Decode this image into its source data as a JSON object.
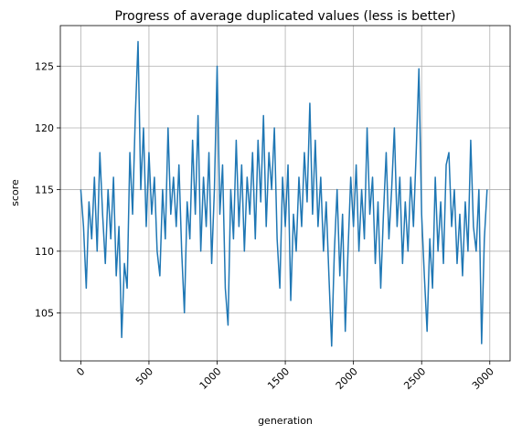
{
  "chart_data": {
    "type": "line",
    "title": "Progress of average duplicated values (less is better)",
    "xlabel": "generation",
    "ylabel": "score",
    "color": "#1f77b4",
    "grid": true,
    "xlim": [
      -150,
      3149
    ],
    "ylim": [
      101.1,
      128.3
    ],
    "xticks": [
      0,
      500,
      1000,
      1500,
      2000,
      2500,
      3000
    ],
    "yticks": [
      105,
      110,
      115,
      120,
      125
    ],
    "x": [
      0,
      20,
      40,
      60,
      80,
      100,
      120,
      140,
      160,
      180,
      200,
      220,
      240,
      260,
      280,
      300,
      320,
      340,
      360,
      380,
      400,
      420,
      440,
      460,
      480,
      500,
      520,
      540,
      560,
      580,
      600,
      620,
      640,
      660,
      680,
      700,
      720,
      740,
      760,
      780,
      800,
      820,
      840,
      860,
      880,
      900,
      920,
      940,
      960,
      980,
      1000,
      1020,
      1040,
      1060,
      1080,
      1100,
      1120,
      1140,
      1160,
      1180,
      1200,
      1220,
      1240,
      1260,
      1280,
      1300,
      1320,
      1340,
      1360,
      1380,
      1400,
      1420,
      1440,
      1460,
      1480,
      1500,
      1520,
      1540,
      1560,
      1580,
      1600,
      1620,
      1640,
      1660,
      1680,
      1700,
      1720,
      1740,
      1760,
      1780,
      1800,
      1820,
      1840,
      1860,
      1880,
      1900,
      1920,
      1940,
      1960,
      1980,
      2000,
      2020,
      2040,
      2060,
      2080,
      2100,
      2120,
      2140,
      2160,
      2180,
      2200,
      2220,
      2240,
      2260,
      2280,
      2300,
      2320,
      2340,
      2360,
      2380,
      2400,
      2420,
      2440,
      2460,
      2480,
      2500,
      2520,
      2540,
      2560,
      2580,
      2600,
      2620,
      2640,
      2660,
      2680,
      2700,
      2720,
      2740,
      2760,
      2780,
      2800,
      2820,
      2840,
      2860,
      2880,
      2900,
      2920,
      2940,
      2960,
      2980
    ],
    "values": [
      115,
      112,
      107,
      114,
      111,
      116,
      110,
      118,
      113,
      109,
      115,
      111,
      116,
      108,
      112,
      103,
      109,
      107,
      118,
      113,
      121,
      127,
      115,
      120,
      112,
      118,
      113,
      116,
      110,
      108,
      115,
      111,
      120,
      113,
      116,
      112,
      117,
      110,
      105,
      114,
      111,
      119,
      113,
      121,
      110,
      116,
      112,
      118,
      109,
      115,
      125,
      113,
      117,
      107,
      104,
      115,
      111,
      119,
      112,
      117,
      110,
      116,
      113,
      118,
      111,
      119,
      114,
      121,
      112,
      118,
      115,
      120,
      111,
      107,
      116,
      112,
      117,
      106,
      113,
      110,
      116,
      112,
      118,
      114,
      122,
      113,
      119,
      112,
      116,
      110,
      114,
      108,
      102.3,
      110,
      115,
      108,
      113,
      103.5,
      110,
      116,
      112,
      117,
      110,
      115,
      111,
      120,
      113,
      116,
      109,
      114,
      107,
      113,
      118,
      111,
      115,
      120,
      112,
      116,
      109,
      114,
      110,
      116,
      112,
      118,
      124.8,
      113,
      108,
      103.5,
      111,
      107,
      116,
      110,
      114,
      109,
      117,
      118,
      112,
      115,
      109,
      113,
      108,
      114,
      110,
      119,
      112,
      110,
      115,
      102.5,
      111,
      115
    ]
  }
}
